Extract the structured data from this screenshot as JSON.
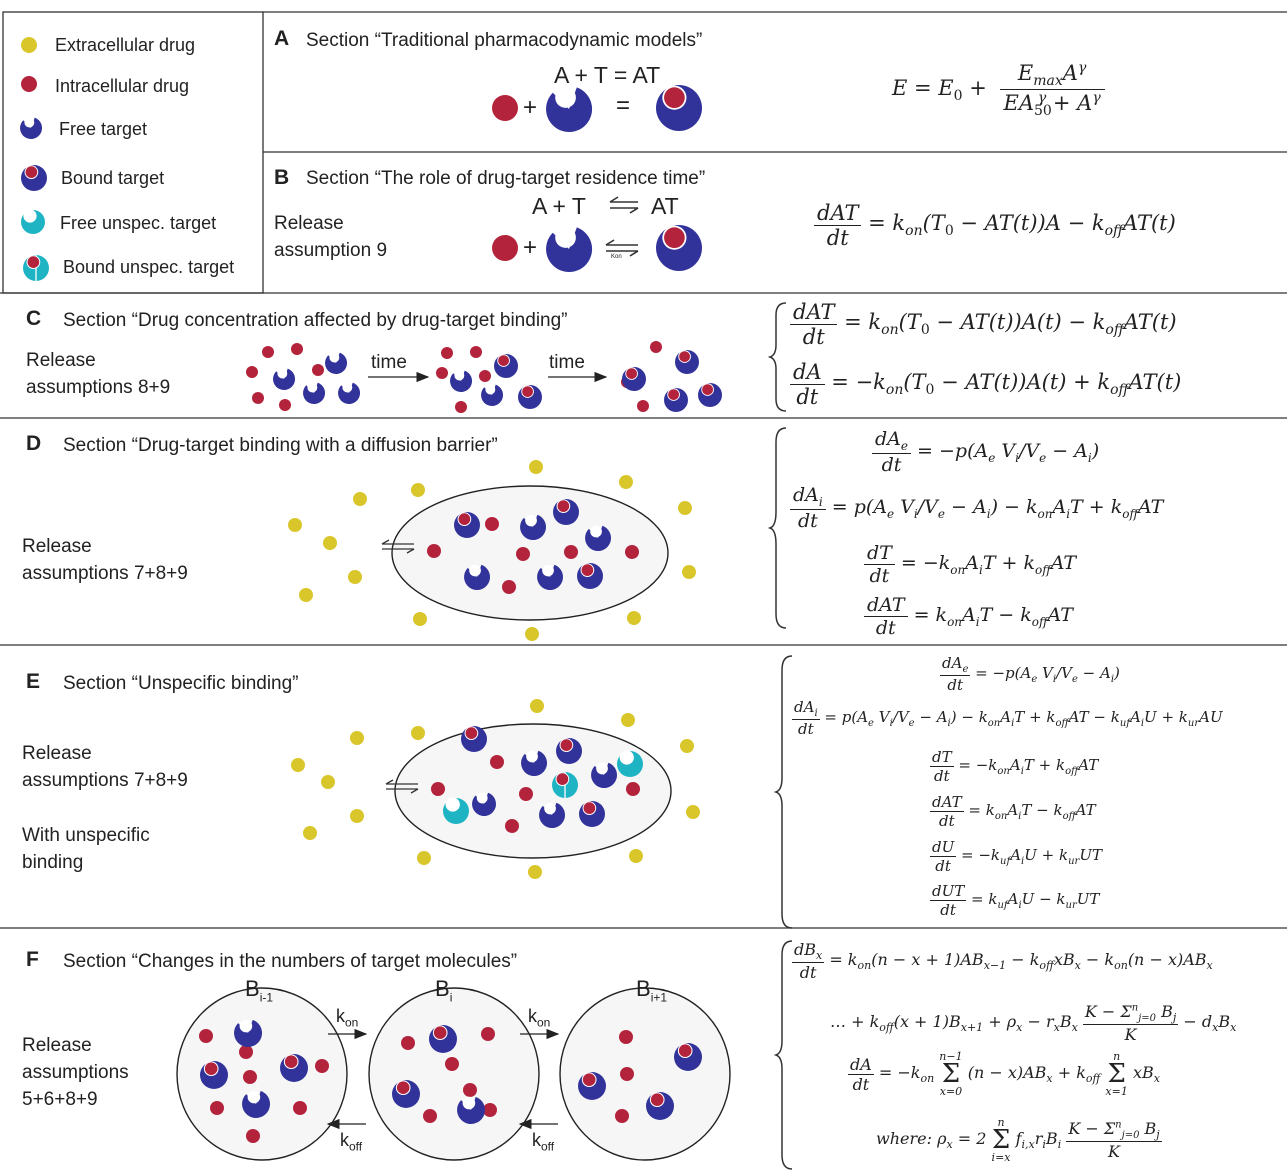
{
  "legend": {
    "items": [
      {
        "label": "Extracellular drug"
      },
      {
        "label": "Intracellular drug"
      },
      {
        "label": "Free target"
      },
      {
        "label": "Bound target"
      },
      {
        "label": "Free unspec. target"
      },
      {
        "label": "Bound unspec. target"
      }
    ]
  },
  "colors": {
    "extracellular": "#d9c62b",
    "intracellular": "#b3243c",
    "target": "#32339a",
    "unspecific": "#1fb4c4",
    "cell_fill": "#f6f6f6"
  },
  "sections": {
    "A": {
      "letter": "A",
      "title": "Section “Traditional pharmacodynamic models”",
      "reaction": "A + T = AT",
      "plus": "+",
      "equals": "=",
      "equation": "E = E₀ + E_max A^γ / (EA₅₀^γ + A^γ)"
    },
    "B": {
      "letter": "B",
      "title": "Section “The role of drug-target residence time”",
      "release": [
        "Release",
        "assumption 9"
      ],
      "reaction": "A + T ⇌ AT",
      "plus": "+",
      "kon": "Kon",
      "equation": "dAT/dt = k_on(T₀ − AT(t))A − k_off AT(t)"
    },
    "C": {
      "letter": "C",
      "title": "Section “Drug concentration affected by drug-target binding”",
      "release": [
        "Release",
        "assumptions 8+9"
      ],
      "time_label": "time",
      "equations": [
        "dAT/dt = k_on(T₀ − AT(t))A(t) − k_off AT(t)",
        "dA/dt = −k_on(T₀ − AT(t))A(t) + k_off AT(t)"
      ]
    },
    "D": {
      "letter": "D",
      "title": "Section “Drug-target binding with a diffusion barrier”",
      "release": [
        "Release",
        "assumptions 7+8+9"
      ],
      "equations": [
        "dA_e/dt = −p(A_e V_i/V_e − A_i)",
        "dA_i/dt = p(A_e V_i/V_e − A_i) − k_on A_i T + k_off AT",
        "dT/dt = −k_on A_i T + k_off AT",
        "dAT/dt = k_on A_i T − k_off AT"
      ]
    },
    "E": {
      "letter": "E",
      "title": "Section “Unspecific binding”",
      "release": [
        "Release",
        "assumptions 7+8+9"
      ],
      "extra": [
        "With unspecific",
        "binding"
      ],
      "equations": [
        "dA_e/dt = −p(A_e V_i/V_e − A_i)",
        "dA_i/dt = p(A_e V_i/V_e − A_i) − k_on A_i T + k_off AT − k_uf A_i U + k_ur AU",
        "dT/dt = −k_on A_i T + k_off AT",
        "dAT/dt = k_on A_i T − k_off AT",
        "dU/dt = −k_uf A_i U + k_ur UT",
        "dUT/dt = k_uf A_i U − k_ur UT"
      ]
    },
    "F": {
      "letter": "F",
      "title": "Section “Changes in the numbers of target molecules”",
      "release": [
        "Release",
        "assumptions",
        "5+6+8+9"
      ],
      "states": [
        "B",
        "B",
        "B"
      ],
      "state_subs": [
        "i-1",
        "i",
        "i+1"
      ],
      "kon": "k",
      "kon_sub": "on",
      "koff": "k",
      "koff_sub": "off",
      "equations": [
        "dB_x/dt = k_on(n − x + 1)AB_x−1 − k_off xB_x − k_on(n − x)AB_x",
        "… + k_off(x + 1)B_x+1 + ρ_x − r_x B_x (K − Σ_j=0^n B_j)/K − d_x B_x",
        "dA/dt = −k_on Σ_x=0^n−1 (n − x)AB_x + k_off Σ_x=1^n xB_x",
        "where: ρ_x = 2 Σ_i=x^n f_i,x r_i B_i (K − Σ_j=0^n B_j)/K"
      ]
    }
  }
}
